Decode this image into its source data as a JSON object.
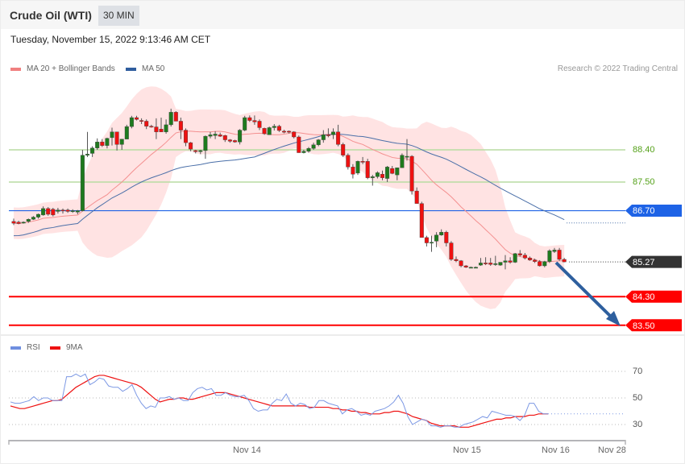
{
  "header": {
    "instrument": "Crude Oil (WTI)",
    "interval": "30 MIN"
  },
  "datetime": "Tuesday, November 15, 2022 9:13:46 AM CET",
  "legend": {
    "items": [
      {
        "label": "MA 20 + Bollinger Bands",
        "color": "#f08080"
      },
      {
        "label": "MA 50",
        "color": "#2f5d9e"
      }
    ]
  },
  "credit": "Research © 2022 Trading Central",
  "rsi_legend": {
    "items": [
      {
        "label": "RSI",
        "color": "#6f8fe0"
      },
      {
        "label": "9MA",
        "color": "#ee1111"
      }
    ]
  },
  "levels": [
    {
      "value": "88.40",
      "kind": "resistance",
      "color": "#a6d38a",
      "text_color": "#55a11a"
    },
    {
      "value": "87.50",
      "kind": "resistance",
      "color": "#a6d38a",
      "text_color": "#55a11a"
    },
    {
      "value": "86.70",
      "kind": "pivot",
      "color": "#1e63e6",
      "text_color": "#ffffff"
    },
    {
      "value": "85.27",
      "kind": "last-price",
      "color": "#333333",
      "text_color": "#ffffff"
    },
    {
      "value": "84.30",
      "kind": "support",
      "color": "#ff0000",
      "text_color": "#ffffff"
    },
    {
      "value": "83.50",
      "kind": "support",
      "color": "#ff0000",
      "text_color": "#ffffff"
    }
  ],
  "rsi_axis": [
    "70",
    "50",
    "30"
  ],
  "x_axis": [
    "Nov 14",
    "Nov 15",
    "Nov 16",
    "Nov 28"
  ],
  "chart_data": [
    {
      "type": "candlestick",
      "title": "Crude Oil (WTI) 30 MIN",
      "indicators": [
        "MA 20 + Bollinger Bands",
        "MA 50"
      ],
      "price_scale": {
        "min": 83.3,
        "max": 89.6
      },
      "horizontal_levels": [
        88.4,
        87.5,
        86.7,
        84.3,
        83.5
      ],
      "last_price": 85.27,
      "forecast_arrow": {
        "from": 85.27,
        "to": 83.5,
        "direction": "down"
      },
      "x_ticks": [
        "Nov 14",
        "Nov 15",
        "Nov 16",
        "Nov 28"
      ],
      "candles": [
        {
          "o": 86.4,
          "h": 86.48,
          "l": 86.3,
          "c": 86.35
        },
        {
          "o": 86.38,
          "h": 86.42,
          "l": 86.32,
          "c": 86.34
        },
        {
          "o": 86.37,
          "h": 86.4,
          "l": 86.34,
          "c": 86.38
        },
        {
          "o": 86.4,
          "h": 86.48,
          "l": 86.36,
          "c": 86.46
        },
        {
          "o": 86.46,
          "h": 86.55,
          "l": 86.44,
          "c": 86.52
        },
        {
          "o": 86.52,
          "h": 86.62,
          "l": 86.48,
          "c": 86.6
        },
        {
          "o": 86.58,
          "h": 86.82,
          "l": 86.56,
          "c": 86.76
        },
        {
          "o": 86.76,
          "h": 86.8,
          "l": 86.56,
          "c": 86.6
        },
        {
          "o": 86.74,
          "h": 86.78,
          "l": 86.54,
          "c": 86.58
        },
        {
          "o": 86.68,
          "h": 86.78,
          "l": 86.62,
          "c": 86.72
        },
        {
          "o": 86.72,
          "h": 86.76,
          "l": 86.62,
          "c": 86.7
        },
        {
          "o": 86.72,
          "h": 86.76,
          "l": 86.64,
          "c": 86.68
        },
        {
          "o": 86.7,
          "h": 86.74,
          "l": 86.64,
          "c": 86.7
        },
        {
          "o": 86.66,
          "h": 86.72,
          "l": 86.6,
          "c": 86.7
        },
        {
          "o": 86.7,
          "h": 88.4,
          "l": 86.68,
          "c": 88.25
        },
        {
          "o": 88.25,
          "h": 88.9,
          "l": 88.2,
          "c": 88.28
        },
        {
          "o": 88.3,
          "h": 88.5,
          "l": 88.2,
          "c": 88.45
        },
        {
          "o": 88.45,
          "h": 88.72,
          "l": 88.4,
          "c": 88.62
        },
        {
          "o": 88.62,
          "h": 88.7,
          "l": 88.48,
          "c": 88.52
        },
        {
          "o": 88.52,
          "h": 88.74,
          "l": 88.44,
          "c": 88.72
        },
        {
          "o": 88.74,
          "h": 89.02,
          "l": 88.52,
          "c": 88.9
        },
        {
          "o": 88.9,
          "h": 88.9,
          "l": 88.38,
          "c": 88.55
        },
        {
          "o": 88.55,
          "h": 88.7,
          "l": 88.4,
          "c": 88.7
        },
        {
          "o": 88.7,
          "h": 89.1,
          "l": 88.7,
          "c": 89.05
        },
        {
          "o": 89.05,
          "h": 89.35,
          "l": 89.0,
          "c": 89.3
        },
        {
          "o": 89.3,
          "h": 89.35,
          "l": 89.22,
          "c": 89.25
        },
        {
          "o": 89.22,
          "h": 89.28,
          "l": 89.12,
          "c": 89.2
        },
        {
          "o": 89.2,
          "h": 89.25,
          "l": 88.98,
          "c": 89.06
        },
        {
          "o": 89.06,
          "h": 89.1,
          "l": 89.02,
          "c": 89.04
        },
        {
          "o": 89.04,
          "h": 89.28,
          "l": 88.7,
          "c": 88.9
        },
        {
          "o": 88.98,
          "h": 89.3,
          "l": 88.95,
          "c": 88.9
        },
        {
          "o": 88.9,
          "h": 89.25,
          "l": 88.85,
          "c": 89.1
        },
        {
          "o": 89.1,
          "h": 89.55,
          "l": 89.05,
          "c": 89.45
        },
        {
          "o": 89.45,
          "h": 89.48,
          "l": 89.2,
          "c": 89.2
        },
        {
          "o": 89.2,
          "h": 89.3,
          "l": 88.7,
          "c": 88.95
        },
        {
          "o": 88.95,
          "h": 89.0,
          "l": 88.5,
          "c": 88.6
        },
        {
          "o": 88.6,
          "h": 88.62,
          "l": 88.36,
          "c": 88.42
        },
        {
          "o": 88.38,
          "h": 88.4,
          "l": 88.3,
          "c": 88.35
        },
        {
          "o": 88.35,
          "h": 88.4,
          "l": 88.28,
          "c": 88.38
        },
        {
          "o": 88.38,
          "h": 88.8,
          "l": 88.15,
          "c": 88.78
        },
        {
          "o": 88.78,
          "h": 88.9,
          "l": 88.72,
          "c": 88.82
        },
        {
          "o": 88.8,
          "h": 88.92,
          "l": 88.7,
          "c": 88.84
        },
        {
          "o": 88.82,
          "h": 88.88,
          "l": 88.76,
          "c": 88.78
        },
        {
          "o": 88.8,
          "h": 88.82,
          "l": 88.62,
          "c": 88.68
        },
        {
          "o": 88.68,
          "h": 88.7,
          "l": 88.6,
          "c": 88.64
        },
        {
          "o": 88.66,
          "h": 88.68,
          "l": 88.6,
          "c": 88.62
        },
        {
          "o": 88.62,
          "h": 88.98,
          "l": 88.55,
          "c": 88.95
        },
        {
          "o": 88.95,
          "h": 89.35,
          "l": 88.92,
          "c": 89.3
        },
        {
          "o": 89.3,
          "h": 89.36,
          "l": 89.18,
          "c": 89.22
        },
        {
          "o": 89.22,
          "h": 89.36,
          "l": 89.1,
          "c": 89.18
        },
        {
          "o": 89.2,
          "h": 89.25,
          "l": 88.95,
          "c": 89.02
        },
        {
          "o": 89.0,
          "h": 89.02,
          "l": 88.82,
          "c": 88.85
        },
        {
          "o": 88.82,
          "h": 89.05,
          "l": 88.84,
          "c": 89.02
        },
        {
          "o": 89.02,
          "h": 89.12,
          "l": 88.94,
          "c": 89.06
        },
        {
          "o": 89.06,
          "h": 89.1,
          "l": 88.9,
          "c": 88.94
        },
        {
          "o": 88.92,
          "h": 88.96,
          "l": 88.86,
          "c": 88.9
        },
        {
          "o": 88.92,
          "h": 88.94,
          "l": 88.86,
          "c": 88.9
        },
        {
          "o": 88.9,
          "h": 88.92,
          "l": 88.72,
          "c": 88.76
        },
        {
          "o": 88.76,
          "h": 88.8,
          "l": 88.32,
          "c": 88.32
        },
        {
          "o": 88.32,
          "h": 88.4,
          "l": 88.3,
          "c": 88.36
        },
        {
          "o": 88.36,
          "h": 88.48,
          "l": 88.32,
          "c": 88.44
        },
        {
          "o": 88.44,
          "h": 88.6,
          "l": 88.4,
          "c": 88.54
        },
        {
          "o": 88.54,
          "h": 88.7,
          "l": 88.5,
          "c": 88.68
        },
        {
          "o": 88.68,
          "h": 88.95,
          "l": 88.6,
          "c": 88.82
        },
        {
          "o": 88.82,
          "h": 89.0,
          "l": 88.75,
          "c": 88.8
        },
        {
          "o": 88.82,
          "h": 89.0,
          "l": 88.7,
          "c": 88.9
        },
        {
          "o": 88.9,
          "h": 89.1,
          "l": 88.5,
          "c": 88.55
        },
        {
          "o": 88.55,
          "h": 88.6,
          "l": 88.2,
          "c": 88.25
        },
        {
          "o": 88.25,
          "h": 88.3,
          "l": 87.85,
          "c": 87.92
        },
        {
          "o": 87.92,
          "h": 88.0,
          "l": 87.6,
          "c": 87.72
        },
        {
          "o": 87.75,
          "h": 88.1,
          "l": 87.7,
          "c": 88.08
        },
        {
          "o": 88.08,
          "h": 88.2,
          "l": 88.0,
          "c": 88.06
        },
        {
          "o": 88.08,
          "h": 88.15,
          "l": 87.58,
          "c": 87.62
        },
        {
          "o": 87.62,
          "h": 87.7,
          "l": 87.4,
          "c": 87.65
        },
        {
          "o": 87.65,
          "h": 87.8,
          "l": 87.6,
          "c": 87.76
        },
        {
          "o": 87.72,
          "h": 87.82,
          "l": 87.55,
          "c": 87.62
        },
        {
          "o": 87.6,
          "h": 87.95,
          "l": 87.5,
          "c": 87.92
        },
        {
          "o": 87.88,
          "h": 87.95,
          "l": 87.72,
          "c": 87.74
        },
        {
          "o": 87.7,
          "h": 87.9,
          "l": 87.55,
          "c": 87.9
        },
        {
          "o": 87.9,
          "h": 88.3,
          "l": 87.9,
          "c": 88.25
        },
        {
          "o": 88.2,
          "h": 88.7,
          "l": 88.1,
          "c": 88.22
        },
        {
          "o": 88.22,
          "h": 88.25,
          "l": 87.15,
          "c": 87.25
        },
        {
          "o": 87.25,
          "h": 87.35,
          "l": 86.9,
          "c": 86.9
        },
        {
          "o": 86.9,
          "h": 86.95,
          "l": 86.1,
          "c": 85.95
        },
        {
          "o": 85.95,
          "h": 86.0,
          "l": 85.7,
          "c": 85.8
        },
        {
          "o": 85.8,
          "h": 86.0,
          "l": 85.55,
          "c": 85.82
        },
        {
          "o": 85.85,
          "h": 86.1,
          "l": 85.68,
          "c": 86.02
        },
        {
          "o": 86.02,
          "h": 86.18,
          "l": 86.0,
          "c": 86.1
        },
        {
          "o": 86.1,
          "h": 86.14,
          "l": 85.7,
          "c": 85.8
        },
        {
          "o": 85.8,
          "h": 85.85,
          "l": 85.3,
          "c": 85.34
        },
        {
          "o": 85.34,
          "h": 85.42,
          "l": 85.26,
          "c": 85.3
        },
        {
          "o": 85.3,
          "h": 85.32,
          "l": 85.12,
          "c": 85.16
        },
        {
          "o": 85.16,
          "h": 85.18,
          "l": 85.1,
          "c": 85.12
        },
        {
          "o": 85.12,
          "h": 85.14,
          "l": 85.1,
          "c": 85.12
        },
        {
          "o": 85.12,
          "h": 85.14,
          "l": 85.1,
          "c": 85.12
        },
        {
          "o": 85.18,
          "h": 85.38,
          "l": 85.16,
          "c": 85.24
        },
        {
          "o": 85.24,
          "h": 85.4,
          "l": 85.18,
          "c": 85.22
        },
        {
          "o": 85.24,
          "h": 85.38,
          "l": 85.16,
          "c": 85.2
        },
        {
          "o": 85.2,
          "h": 85.44,
          "l": 85.16,
          "c": 85.22
        },
        {
          "o": 85.18,
          "h": 85.26,
          "l": 85.16,
          "c": 85.26
        },
        {
          "o": 85.26,
          "h": 85.46,
          "l": 85.06,
          "c": 85.3
        },
        {
          "o": 85.3,
          "h": 85.4,
          "l": 85.22,
          "c": 85.26
        },
        {
          "o": 85.26,
          "h": 85.52,
          "l": 85.24,
          "c": 85.5
        },
        {
          "o": 85.5,
          "h": 85.6,
          "l": 85.42,
          "c": 85.46
        },
        {
          "o": 85.46,
          "h": 85.52,
          "l": 85.34,
          "c": 85.38
        },
        {
          "o": 85.38,
          "h": 85.42,
          "l": 85.3,
          "c": 85.32
        },
        {
          "o": 85.32,
          "h": 85.36,
          "l": 85.24,
          "c": 85.28
        },
        {
          "o": 85.28,
          "h": 85.32,
          "l": 85.14,
          "c": 85.16
        },
        {
          "o": 85.16,
          "h": 85.3,
          "l": 85.12,
          "c": 85.28
        },
        {
          "o": 85.28,
          "h": 85.62,
          "l": 85.24,
          "c": 85.58
        },
        {
          "o": 85.56,
          "h": 85.66,
          "l": 85.52,
          "c": 85.6
        },
        {
          "o": 85.6,
          "h": 85.66,
          "l": 85.3,
          "c": 85.34
        },
        {
          "o": 85.34,
          "h": 85.38,
          "l": 85.26,
          "c": 85.27
        }
      ]
    },
    {
      "type": "line",
      "title": "RSI",
      "series": [
        {
          "name": "RSI",
          "color": "#6f8fe0"
        },
        {
          "name": "9MA",
          "color": "#ee1111"
        }
      ],
      "ylim": [
        20,
        80
      ],
      "y_ticks": [
        70,
        50,
        30
      ],
      "rsi_values": [
        47,
        46,
        46,
        47,
        48,
        51,
        48,
        50,
        50,
        48,
        48,
        48,
        66,
        66,
        68,
        66,
        68,
        60,
        62,
        65,
        64,
        59,
        58,
        58,
        55,
        57,
        60,
        52,
        46,
        42,
        44,
        43,
        50,
        50,
        51,
        49,
        50,
        48,
        48,
        54,
        57,
        58,
        56,
        57,
        52,
        52,
        54,
        52,
        51,
        51,
        52,
        48,
        42,
        40,
        41,
        41,
        46,
        49,
        48,
        53,
        46,
        44,
        46,
        45,
        42,
        43,
        48,
        48,
        46,
        45,
        44,
        38,
        41,
        42,
        40,
        37,
        38,
        37,
        40,
        41,
        42,
        44,
        47,
        52,
        46,
        36,
        30,
        32,
        34,
        33,
        29,
        29,
        28,
        29,
        29,
        28,
        28,
        30,
        31,
        32,
        34,
        36,
        35,
        40,
        39,
        38,
        37,
        37,
        36,
        33,
        37,
        46,
        46,
        40,
        38,
        38
      ],
      "ma_values": [
        44,
        43,
        42,
        42,
        43,
        44,
        45,
        46,
        47,
        48,
        48,
        49,
        52,
        55,
        58,
        60,
        62,
        64,
        66,
        67,
        67,
        66,
        65,
        64,
        63,
        62,
        61,
        60,
        58,
        55,
        52,
        49,
        47,
        48,
        49,
        49,
        50,
        50,
        49,
        49,
        50,
        51,
        52,
        53,
        54,
        54,
        54,
        53,
        52,
        51,
        50,
        49,
        48,
        47,
        46,
        45,
        44,
        44,
        44,
        44,
        44,
        44,
        44,
        44,
        43,
        43,
        43,
        43,
        43,
        42,
        42,
        41,
        41,
        40,
        40,
        39,
        39,
        38,
        38,
        38,
        39,
        39,
        40,
        40,
        39,
        38,
        36,
        35,
        34,
        33,
        31,
        30,
        29,
        29,
        29,
        29,
        28,
        28,
        28,
        29,
        30,
        31,
        32,
        33,
        34,
        34,
        35,
        35,
        36,
        36,
        36,
        37,
        37,
        38,
        38,
        38
      ]
    }
  ]
}
